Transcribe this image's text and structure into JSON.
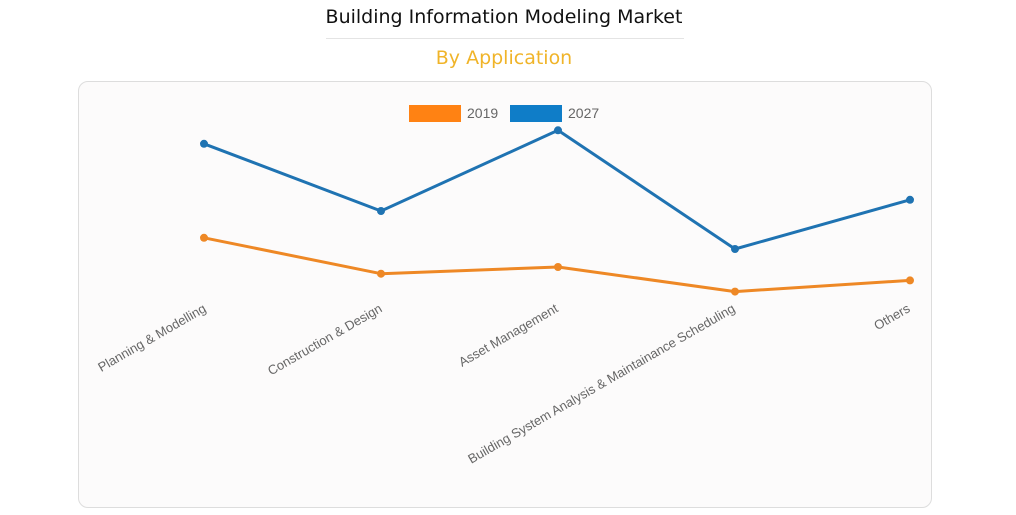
{
  "header": {
    "title": "Building Information Modeling Market",
    "subtitle": "By Application"
  },
  "chart_data": {
    "type": "line",
    "categories": [
      "Planning & Modelling",
      "Construction & Design",
      "Asset Management",
      "Building System Analysis & Maintainance Scheduling",
      "Others"
    ],
    "series": [
      {
        "name": "2019",
        "color": "#ee8825",
        "values": [
          34,
          18,
          21,
          10,
          15
        ]
      },
      {
        "name": "2027",
        "color": "#1f73b2",
        "values": [
          76,
          46,
          82,
          29,
          51
        ]
      }
    ],
    "ylim": [
      0,
      100
    ],
    "legend": "top-center",
    "grid": false,
    "y_axis_visible": false,
    "legend_colors": {
      "2019": "#ff8213",
      "2027": "#0f7dc8"
    }
  }
}
